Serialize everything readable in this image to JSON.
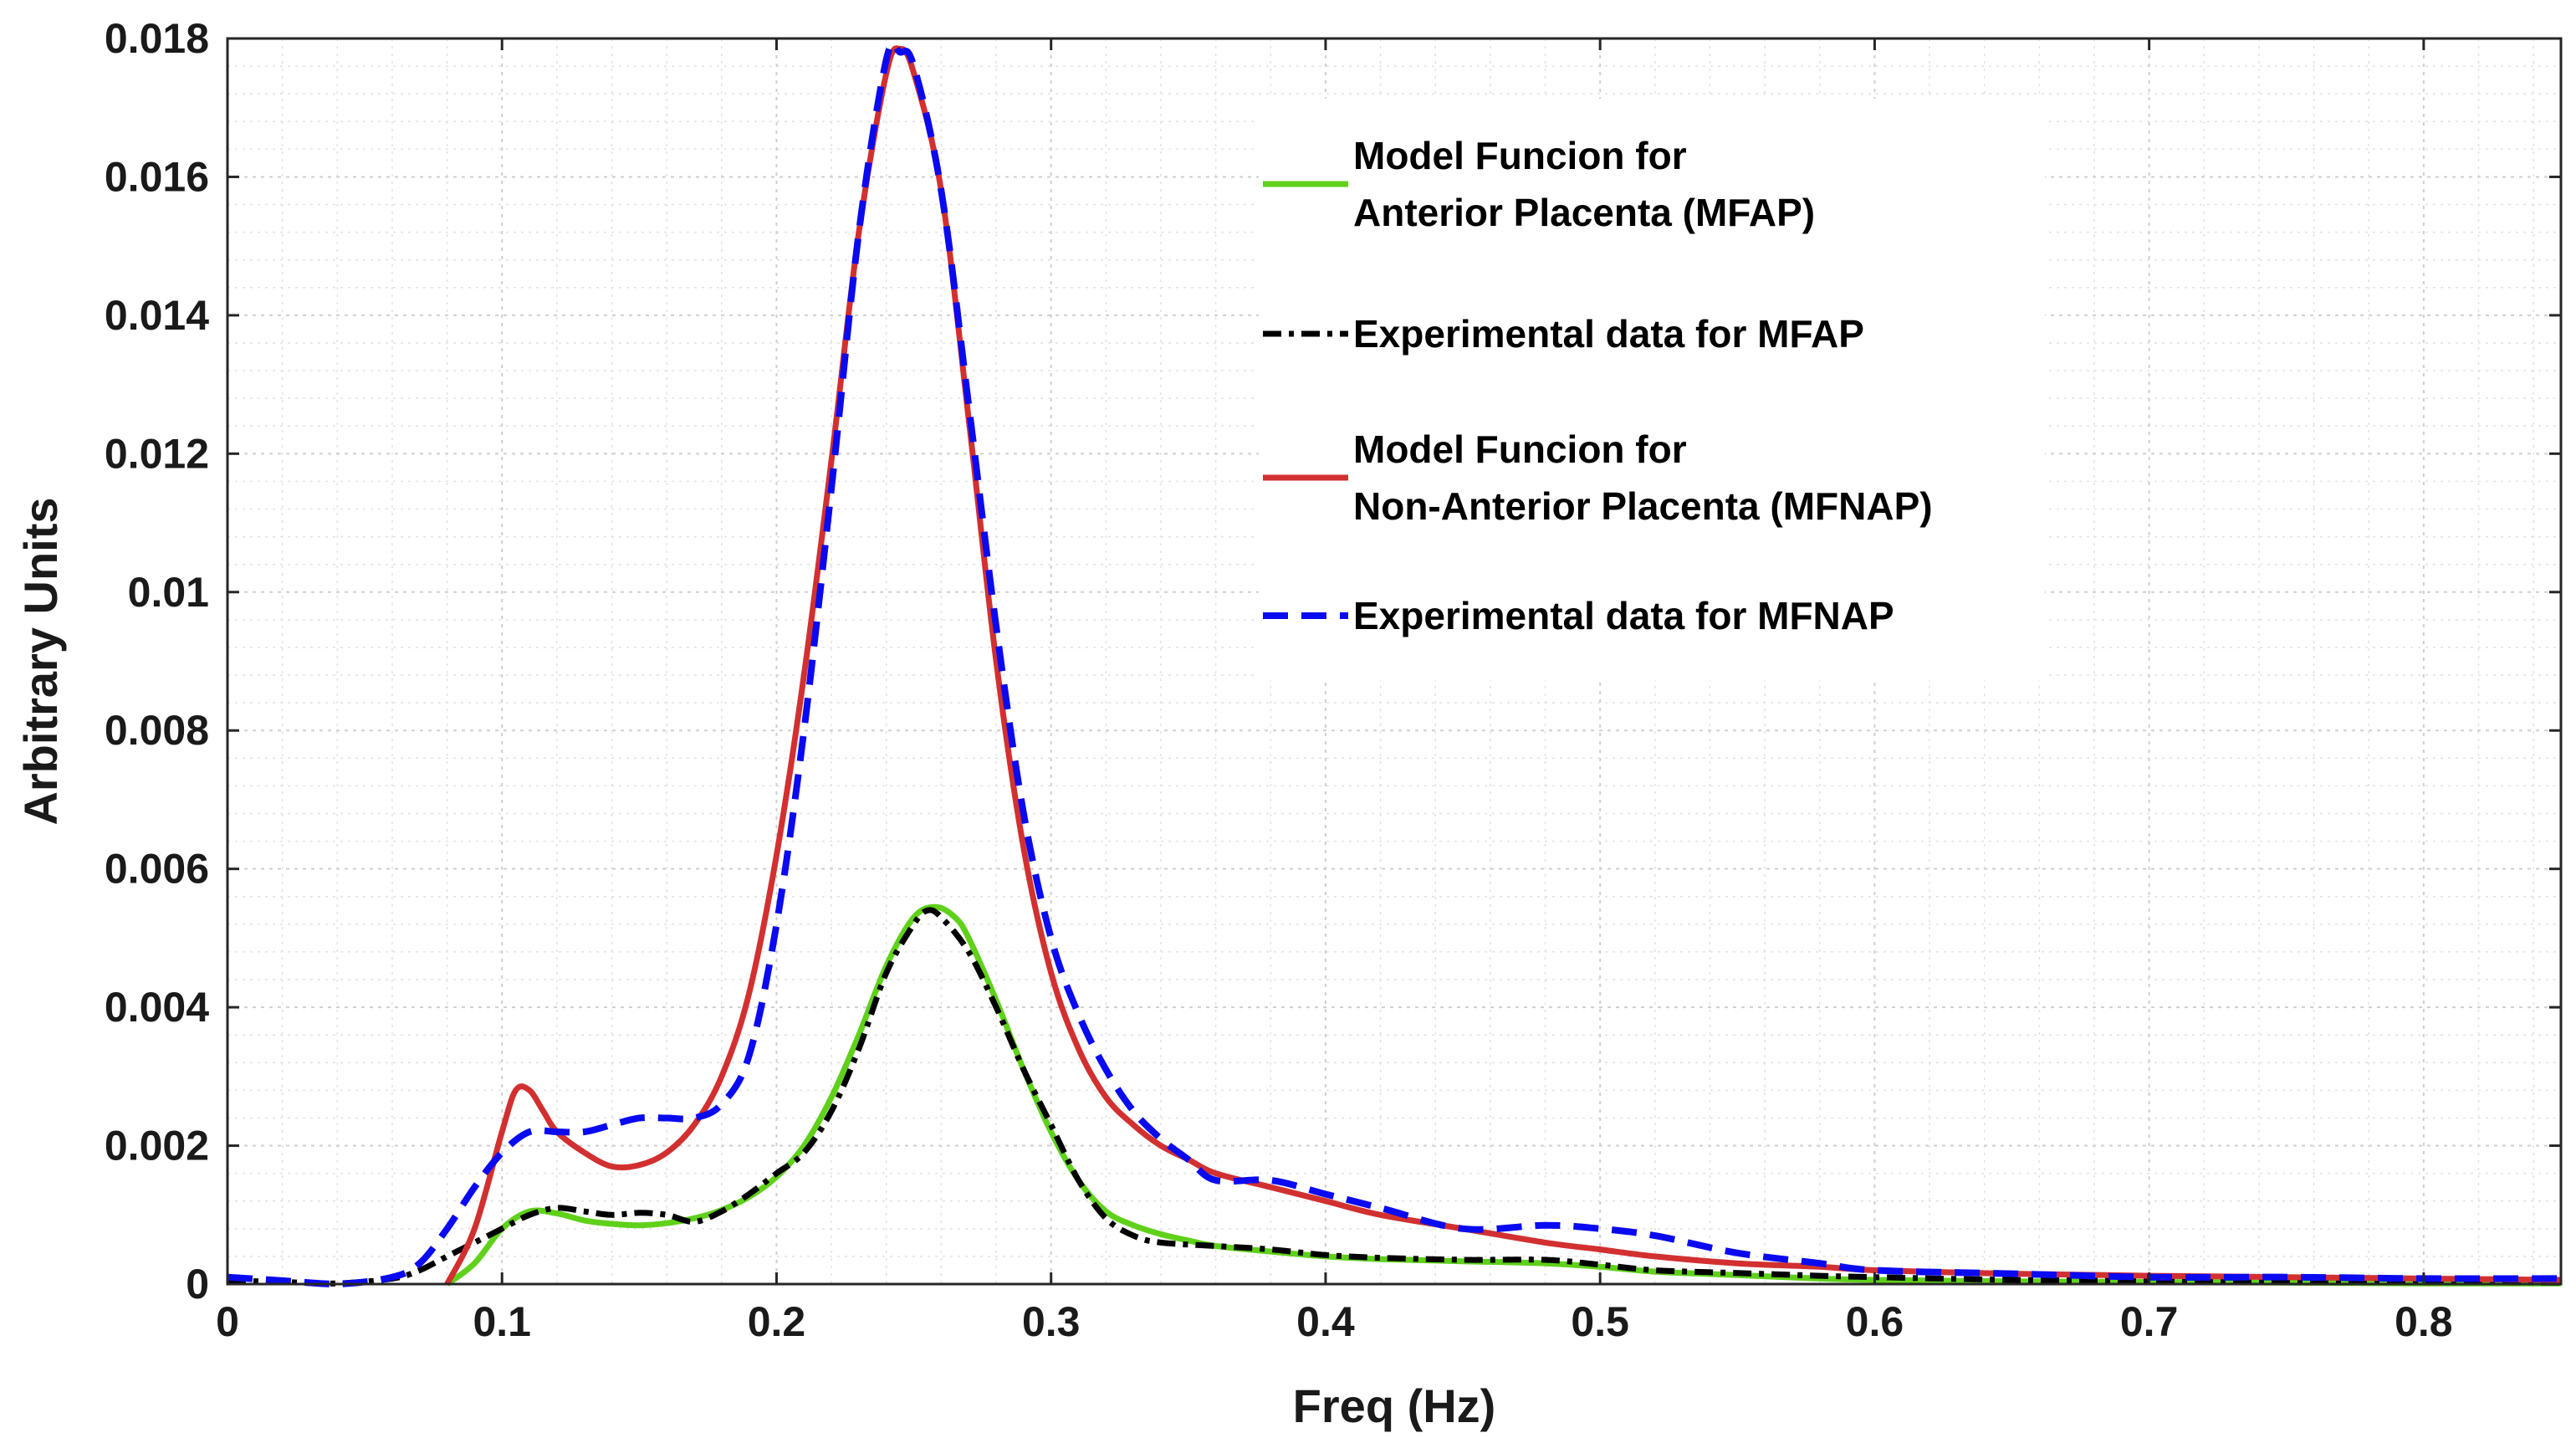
{
  "chart_data": {
    "type": "line",
    "title": "",
    "xlabel": "Freq (Hz)",
    "ylabel": "Arbitrary Units",
    "xlim": [
      0,
      0.85
    ],
    "ylim": [
      0,
      0.018
    ],
    "grid": true,
    "minor_grid": true,
    "legend_position": "top-right",
    "x_ticks": [
      {
        "value": 0,
        "label": "0"
      },
      {
        "value": 0.1,
        "label": "0.1"
      },
      {
        "value": 0.2,
        "label": "0.2"
      },
      {
        "value": 0.3,
        "label": "0.3"
      },
      {
        "value": 0.4,
        "label": "0.4"
      },
      {
        "value": 0.5,
        "label": "0.5"
      },
      {
        "value": 0.6,
        "label": "0.6"
      },
      {
        "value": 0.7,
        "label": "0.7"
      },
      {
        "value": 0.8,
        "label": "0.8"
      }
    ],
    "y_ticks": [
      {
        "value": 0,
        "label": "0"
      },
      {
        "value": 0.002,
        "label": "0.002"
      },
      {
        "value": 0.004,
        "label": "0.004"
      },
      {
        "value": 0.006,
        "label": "0.006"
      },
      {
        "value": 0.008,
        "label": "0.008"
      },
      {
        "value": 0.01,
        "label": "0.01"
      },
      {
        "value": 0.012,
        "label": "0.012"
      },
      {
        "value": 0.014,
        "label": "0.014"
      },
      {
        "value": 0.016,
        "label": "0.016"
      },
      {
        "value": 0.018,
        "label": "0.018"
      }
    ],
    "series": [
      {
        "id": "mfap-model",
        "legend_lines": [
          "Model Funcion for",
          "Anterior Placenta (MFAP)"
        ],
        "color": "#5fd11a",
        "dash": "solid",
        "x": [
          0.08,
          0.09,
          0.1,
          0.11,
          0.12,
          0.13,
          0.14,
          0.15,
          0.16,
          0.17,
          0.18,
          0.19,
          0.2,
          0.21,
          0.22,
          0.23,
          0.24,
          0.25,
          0.258,
          0.265,
          0.27,
          0.28,
          0.29,
          0.3,
          0.31,
          0.32,
          0.33,
          0.34,
          0.35,
          0.36,
          0.38,
          0.4,
          0.42,
          0.45,
          0.48,
          0.5,
          0.52,
          0.55,
          0.58,
          0.6,
          0.65,
          0.7,
          0.75,
          0.8,
          0.85
        ],
        "y": [
          0.0,
          0.0003,
          0.0008,
          0.00105,
          0.00102,
          0.00092,
          0.00087,
          0.00085,
          0.00088,
          0.00095,
          0.00107,
          0.00126,
          0.00155,
          0.002,
          0.0027,
          0.0036,
          0.0046,
          0.0053,
          0.00545,
          0.0053,
          0.005,
          0.0041,
          0.0031,
          0.0022,
          0.0015,
          0.00105,
          0.00085,
          0.00072,
          0.00063,
          0.00055,
          0.00047,
          0.0004,
          0.00036,
          0.00033,
          0.0003,
          0.00025,
          0.00018,
          0.00013,
          8e-05,
          6e-05,
          4e-05,
          3e-05,
          2e-05,
          1e-05,
          1e-05
        ]
      },
      {
        "id": "mfap-experimental",
        "legend_lines": [
          "Experimental data for MFAP"
        ],
        "color": "#000000",
        "dash": "dash-dot",
        "x": [
          0.0,
          0.02,
          0.04,
          0.06,
          0.07,
          0.08,
          0.09,
          0.1,
          0.11,
          0.12,
          0.13,
          0.14,
          0.15,
          0.16,
          0.17,
          0.18,
          0.19,
          0.2,
          0.21,
          0.22,
          0.23,
          0.24,
          0.25,
          0.255,
          0.26,
          0.27,
          0.28,
          0.29,
          0.3,
          0.31,
          0.32,
          0.33,
          0.34,
          0.36,
          0.38,
          0.4,
          0.42,
          0.45,
          0.48,
          0.5,
          0.52,
          0.55,
          0.58,
          0.6,
          0.65,
          0.7,
          0.75,
          0.8,
          0.85
        ],
        "y": [
          5e-05,
          3e-05,
          1e-05,
          8e-05,
          0.0002,
          0.0004,
          0.0006,
          0.0008,
          0.001,
          0.0011,
          0.00105,
          0.001,
          0.00103,
          0.001,
          0.0009,
          0.00105,
          0.0013,
          0.0016,
          0.0019,
          0.0025,
          0.0034,
          0.0045,
          0.0052,
          0.0054,
          0.0053,
          0.0048,
          0.004,
          0.0031,
          0.0023,
          0.0015,
          0.00095,
          0.0007,
          0.0006,
          0.00055,
          0.0005,
          0.00042,
          0.00038,
          0.00035,
          0.00035,
          0.00028,
          0.0002,
          0.00016,
          0.00012,
          0.0001,
          6e-05,
          5e-05,
          4e-05,
          3e-05,
          2e-05
        ]
      },
      {
        "id": "mfnap-model",
        "legend_lines": [
          "Model Funcion for",
          "Non-Anterior Placenta (MFNAP)"
        ],
        "color": "#d23030",
        "dash": "solid",
        "x": [
          0.08,
          0.09,
          0.1,
          0.105,
          0.11,
          0.115,
          0.12,
          0.13,
          0.14,
          0.15,
          0.16,
          0.17,
          0.18,
          0.19,
          0.2,
          0.21,
          0.22,
          0.23,
          0.24,
          0.245,
          0.25,
          0.26,
          0.27,
          0.28,
          0.29,
          0.3,
          0.31,
          0.32,
          0.33,
          0.34,
          0.35,
          0.36,
          0.38,
          0.4,
          0.42,
          0.45,
          0.48,
          0.5,
          0.52,
          0.55,
          0.58,
          0.6,
          0.65,
          0.7,
          0.75,
          0.8,
          0.85
        ],
        "y": [
          0.0,
          0.0008,
          0.0022,
          0.0028,
          0.0028,
          0.0025,
          0.0022,
          0.0019,
          0.0017,
          0.00172,
          0.0019,
          0.0023,
          0.003,
          0.0042,
          0.0062,
          0.0088,
          0.0119,
          0.0152,
          0.0175,
          0.01785,
          0.0175,
          0.0158,
          0.0125,
          0.009,
          0.0063,
          0.0045,
          0.0034,
          0.0027,
          0.0023,
          0.002,
          0.0018,
          0.0016,
          0.0014,
          0.0012,
          0.001,
          0.0008,
          0.0006,
          0.0005,
          0.0004,
          0.0003,
          0.00025,
          0.0002,
          0.00015,
          0.00012,
          0.0001,
          8e-05,
          6e-05
        ]
      },
      {
        "id": "mfnap-experimental",
        "legend_lines": [
          "Experimental data for MFNAP"
        ],
        "color": "#0a0af0",
        "dash": "dashed",
        "x": [
          0.0,
          0.02,
          0.04,
          0.06,
          0.07,
          0.08,
          0.09,
          0.1,
          0.11,
          0.12,
          0.13,
          0.14,
          0.15,
          0.16,
          0.17,
          0.18,
          0.19,
          0.2,
          0.21,
          0.22,
          0.23,
          0.24,
          0.245,
          0.25,
          0.26,
          0.27,
          0.28,
          0.29,
          0.3,
          0.31,
          0.32,
          0.33,
          0.34,
          0.35,
          0.36,
          0.38,
          0.4,
          0.42,
          0.45,
          0.48,
          0.5,
          0.52,
          0.55,
          0.58,
          0.6,
          0.65,
          0.7,
          0.75,
          0.8,
          0.85
        ],
        "y": [
          0.0001,
          5e-05,
          0.0,
          0.0001,
          0.0003,
          0.0008,
          0.0014,
          0.0019,
          0.0022,
          0.0022,
          0.0022,
          0.0023,
          0.0024,
          0.0024,
          0.0024,
          0.0026,
          0.0033,
          0.0052,
          0.008,
          0.0115,
          0.0152,
          0.0177,
          0.0178,
          0.0176,
          0.0158,
          0.0127,
          0.0095,
          0.0068,
          0.005,
          0.0039,
          0.0031,
          0.0025,
          0.0021,
          0.0018,
          0.0015,
          0.0015,
          0.0013,
          0.0011,
          0.0008,
          0.00085,
          0.0008,
          0.0007,
          0.00045,
          0.0003,
          0.0002,
          0.00015,
          0.0001,
          0.0001,
          8e-05,
          8e-05
        ]
      }
    ]
  }
}
